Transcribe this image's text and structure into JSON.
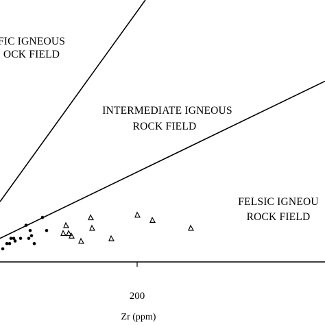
{
  "chart_data": {
    "type": "scatter",
    "title": "",
    "xlabel": "Zr (ppm)",
    "ylabel": "",
    "x_ticks": [
      200
    ],
    "xlim": [
      0,
      450
    ],
    "ylim": [
      0,
      100
    ],
    "grid": false,
    "field_labels": {
      "mafic": [
        "FIC IGNEOUS",
        "OCK FIELD"
      ],
      "intermediate": [
        "INTERMEDIATE IGNEOUS",
        "ROCK FIELD"
      ],
      "felsic": [
        "FELSIC IGNEOU",
        "ROCK FIELD"
      ]
    },
    "boundaries": [
      {
        "name": "mafic-intermediate",
        "points": [
          [
            0,
            23
          ],
          [
            212,
            100
          ]
        ]
      },
      {
        "name": "intermediate-felsic",
        "points": [
          [
            0,
            9
          ],
          [
            474,
            69
          ]
        ]
      }
    ],
    "series": [
      {
        "marker": "circle",
        "points": [
          [
            4,
            5
          ],
          [
            10,
            7
          ],
          [
            14,
            7
          ],
          [
            16,
            9
          ],
          [
            20,
            9
          ],
          [
            22,
            8
          ],
          [
            30,
            9
          ],
          [
            38,
            14
          ],
          [
            42,
            9
          ],
          [
            44,
            12
          ],
          [
            46,
            10
          ],
          [
            50,
            7
          ],
          [
            62,
            17
          ],
          [
            68,
            12
          ]
        ]
      },
      {
        "marker": "triangle",
        "points": [
          [
            92,
            11
          ],
          [
            96,
            14
          ],
          [
            100,
            11
          ],
          [
            104,
            10
          ],
          [
            118,
            8
          ],
          [
            132,
            17
          ],
          [
            134,
            13
          ],
          [
            162,
            9
          ],
          [
            200,
            18
          ],
          [
            222,
            16
          ],
          [
            278,
            13
          ]
        ]
      }
    ]
  }
}
